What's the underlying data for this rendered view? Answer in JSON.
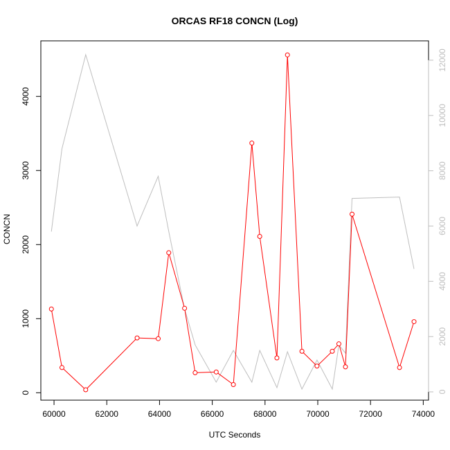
{
  "chart_data": {
    "type": "line",
    "title": "ORCAS RF18 CONCN (Log)",
    "xlabel": "UTC Seconds",
    "ylabel": "CONCN",
    "xlim": [
      59500,
      74200
    ],
    "ylim": [
      -100,
      4750
    ],
    "y2lim": [
      -300,
      12700
    ],
    "x_ticks": [
      60000,
      62000,
      64000,
      66000,
      68000,
      70000,
      72000,
      74000
    ],
    "y_ticks": [
      0,
      1000,
      2000,
      3000,
      4000
    ],
    "y2_ticks": [
      0,
      2000,
      4000,
      6000,
      8000,
      10000,
      12000
    ],
    "colors": {
      "primary": "#ff0000",
      "secondary": "#bebebe"
    },
    "series": [
      {
        "axis": "left",
        "style": "line+points",
        "x": [
          59900,
          60300,
          61200,
          63150,
          63950,
          64350,
          64950,
          65350,
          66150,
          66800,
          67500,
          67800,
          68450,
          68850,
          69400,
          69970,
          70550,
          70800,
          71050,
          71300,
          73100,
          73650
        ],
        "y": [
          1130,
          340,
          40,
          740,
          730,
          1890,
          1140,
          270,
          280,
          110,
          3370,
          2110,
          470,
          4560,
          560,
          360,
          560,
          660,
          350,
          2410,
          340,
          960
        ]
      },
      {
        "axis": "right",
        "style": "line",
        "x": [
          59900,
          60300,
          61200,
          63150,
          63950,
          64350,
          64950,
          65350,
          66150,
          66800,
          67500,
          67800,
          68450,
          68850,
          69400,
          69970,
          70550,
          70800,
          71050,
          71300,
          73100,
          73650
        ],
        "y": [
          5800,
          8800,
          12200,
          6000,
          7800,
          5800,
          3000,
          1700,
          350,
          1500,
          350,
          1500,
          150,
          1450,
          100,
          1150,
          100,
          1700,
          1400,
          7000,
          7050,
          4450
        ]
      }
    ]
  }
}
